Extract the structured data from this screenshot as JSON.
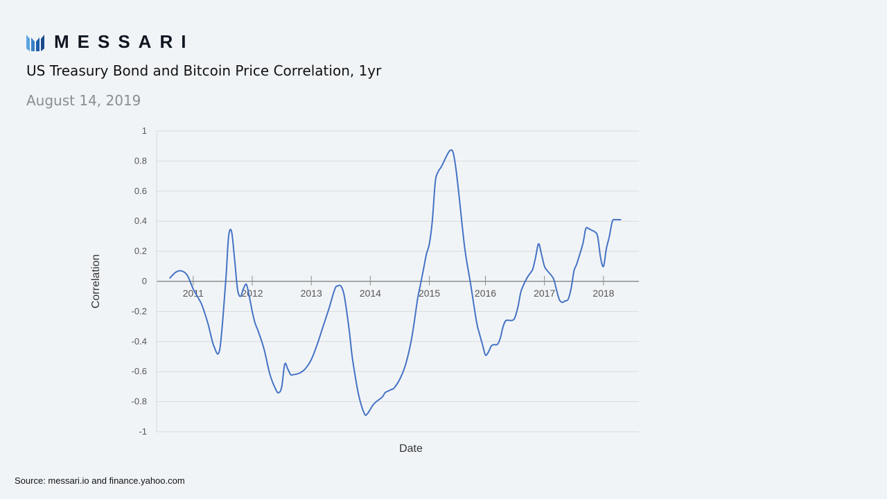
{
  "brand": {
    "name": "MESSARI",
    "logo_icon": "messari-logo-icon",
    "colors": {
      "dark": "#1a4a8c",
      "light": "#5ba4e0"
    }
  },
  "header": {
    "title": "US Treasury Bond and Bitcoin Price Correlation, 1yr",
    "date": "August 14, 2019"
  },
  "footer": {
    "source": "Source: messari.io and finance.yahoo.com"
  },
  "chart_data": {
    "type": "line",
    "title": "",
    "xlabel": "Date",
    "ylabel": "Correlation",
    "ylim": [
      -1,
      1
    ],
    "y_ticks": [
      "1",
      "0.8",
      "0.6",
      "0.4",
      "0.2",
      "0",
      "-0.2",
      "-0.4",
      "-0.6",
      "-0.8",
      "-1"
    ],
    "x_ticks": [
      {
        "label": "2011",
        "x": 2010.9
      },
      {
        "label": "2012",
        "x": 2011.9
      },
      {
        "label": "2013",
        "x": 2012.9
      },
      {
        "label": "2014",
        "x": 2013.9
      },
      {
        "label": "2015",
        "x": 2014.9
      },
      {
        "label": "2016",
        "x": 2015.85
      },
      {
        "label": "2017",
        "x": 2016.85
      },
      {
        "label": "2018",
        "x": 2017.85
      }
    ],
    "xlim": [
      2010.28,
      2018.45
    ],
    "grid": true,
    "line_color": "#4472c4",
    "series": [
      {
        "name": "",
        "x": [
          2010.5,
          2010.6,
          2010.7,
          2010.8,
          2010.9,
          2011.0,
          2011.05,
          2011.15,
          2011.25,
          2011.35,
          2011.45,
          2011.5,
          2011.55,
          2011.6,
          2011.65,
          2011.7,
          2011.75,
          2011.8,
          2011.85,
          2011.9,
          2011.95,
          2012.0,
          2012.1,
          2012.2,
          2012.3,
          2012.35,
          2012.4,
          2012.45,
          2012.5,
          2012.55,
          2012.6,
          2012.7,
          2012.8,
          2012.9,
          2013.0,
          2013.1,
          2013.2,
          2013.3,
          2013.35,
          2013.4,
          2013.45,
          2013.5,
          2013.55,
          2013.6,
          2013.7,
          2013.8,
          2013.85,
          2013.9,
          2013.95,
          2014.0,
          2014.1,
          2014.15,
          2014.2,
          2014.25,
          2014.3,
          2014.4,
          2014.5,
          2014.6,
          2014.7,
          2014.75,
          2014.8,
          2014.85,
          2014.9,
          2014.95,
          2015.0,
          2015.05,
          2015.1,
          2015.15,
          2015.2,
          2015.25,
          2015.3,
          2015.35,
          2015.4,
          2015.5,
          2015.6,
          2015.7,
          2015.75,
          2015.8,
          2015.85,
          2015.9,
          2015.95,
          2016.0,
          2016.05,
          2016.1,
          2016.15,
          2016.2,
          2016.3,
          2016.35,
          2016.4,
          2016.45,
          2016.5,
          2016.55,
          2016.6,
          2016.65,
          2016.7,
          2016.75,
          2016.8,
          2016.85,
          2016.9,
          2017.0,
          2017.05,
          2017.1,
          2017.15,
          2017.2,
          2017.25,
          2017.3,
          2017.35,
          2017.4,
          2017.5,
          2017.55,
          2017.6,
          2017.65,
          2017.7,
          2017.75,
          2017.8,
          2017.85,
          2017.9,
          2017.95,
          2018.0,
          2018.05,
          2018.1,
          2018.15
        ],
        "y": [
          0.02,
          0.06,
          0.07,
          0.04,
          -0.05,
          -0.12,
          -0.16,
          -0.28,
          -0.43,
          -0.45,
          0.0,
          0.3,
          0.33,
          0.15,
          -0.05,
          -0.1,
          -0.05,
          -0.02,
          -0.1,
          -0.2,
          -0.28,
          -0.33,
          -0.45,
          -0.62,
          -0.72,
          -0.74,
          -0.7,
          -0.55,
          -0.58,
          -0.62,
          -0.62,
          -0.61,
          -0.58,
          -0.52,
          -0.42,
          -0.3,
          -0.18,
          -0.05,
          -0.03,
          -0.03,
          -0.08,
          -0.2,
          -0.35,
          -0.52,
          -0.75,
          -0.88,
          -0.88,
          -0.85,
          -0.82,
          -0.8,
          -0.77,
          -0.74,
          -0.73,
          -0.72,
          -0.71,
          -0.65,
          -0.55,
          -0.38,
          -0.12,
          -0.02,
          0.08,
          0.18,
          0.25,
          0.4,
          0.66,
          0.73,
          0.76,
          0.8,
          0.84,
          0.87,
          0.86,
          0.75,
          0.58,
          0.22,
          -0.02,
          -0.27,
          -0.35,
          -0.42,
          -0.49,
          -0.47,
          -0.43,
          -0.42,
          -0.42,
          -0.38,
          -0.3,
          -0.26,
          -0.26,
          -0.24,
          -0.17,
          -0.07,
          -0.02,
          0.02,
          0.05,
          0.08,
          0.16,
          0.25,
          0.18,
          0.1,
          0.07,
          0.02,
          -0.05,
          -0.12,
          -0.14,
          -0.13,
          -0.12,
          -0.05,
          0.07,
          0.12,
          0.25,
          0.35,
          0.35,
          0.34,
          0.33,
          0.3,
          0.16,
          0.1,
          0.22,
          0.3,
          0.4,
          0.41,
          0.41,
          0.41
        ]
      }
    ]
  }
}
